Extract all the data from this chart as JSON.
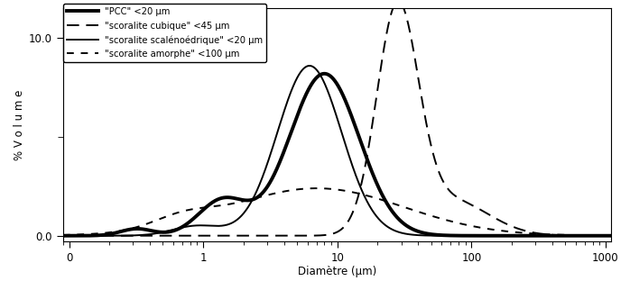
{
  "title": "",
  "xlabel": "Diamètre (μm)",
  "ylabel": "% V o l u m e",
  "ylim": [
    -0.3,
    11.5
  ],
  "background_color": "#ffffff",
  "legend_labels": [
    "\"PCC\" <20 μm",
    "\"scoralite cubique\" <45 μm",
    "\"scoralite scalénoédrique\" <20 μm",
    "\"scoralite amorphe\" <100 μm"
  ]
}
